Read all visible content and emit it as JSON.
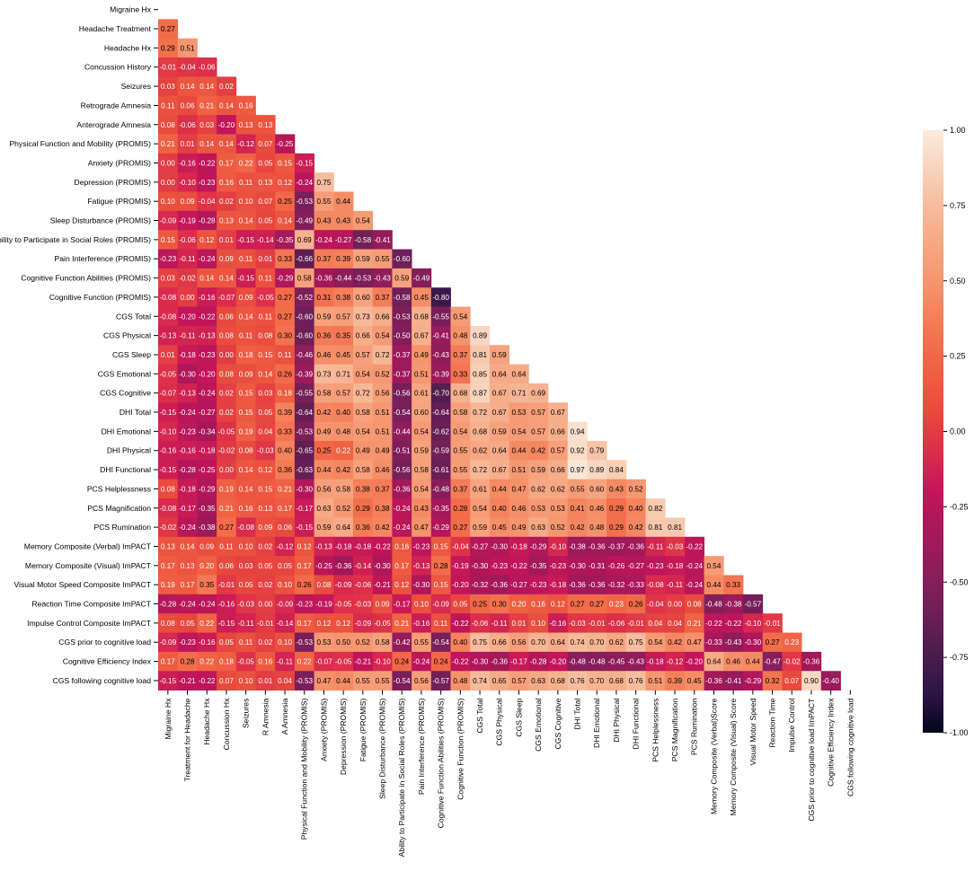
{
  "chart_data": {
    "type": "heatmap",
    "title": "",
    "xlabel": "",
    "ylabel": "",
    "mask": "upper-triangle-including-diagonal",
    "value_format": "2 decimals",
    "y_labels": [
      "Migraine Hx",
      "Headache Treatment",
      "Headache Hx",
      "Concussion History",
      "Seizures",
      "Retrograde Amnesia",
      "Anterograde Amnesia",
      "Physical Function and Mobility (PROMIS)",
      "Anxiety (PROMIS)",
      "Depression (PROMIS)",
      "Fatigue (PROMIS)",
      "Sleep Disturbance (PROMIS)",
      "Ability to Participate in Social Roles (PROMIS)",
      "Pain Interference (PROMIS)",
      "Cognitive Function Abilities (PROMIS)",
      "Cognitive Function (PROMIS)",
      "CGS Total",
      "CGS Physical",
      "CGS Sleep",
      "CGS Emotional",
      "CGS Cognitive",
      "DHI Total",
      "DHI Emotional",
      "DHI Physical",
      "DHI Functional",
      "PCS Helplessness",
      "PCS Magnification",
      "PCS Rumination",
      "Memory Composite (Verbal) ImPACT",
      "Memory Composite (Visual) ImPACT",
      "Visual Motor Speed Composite ImPACT",
      "Reaction Time Composite ImPACT",
      "Impulse Control Composite ImPACT",
      "CGS prior to cognitive load",
      "Cognitive Efficiency Index",
      "CGS following cognitive load"
    ],
    "x_labels": [
      "Migraine Hx",
      "Treatment for Headache",
      "Headache Hx",
      "Concussion Hx",
      "Seizures",
      "R Amnesia",
      "A Amnesia",
      "Physical Function and Mobility (PROMIS)",
      "Anxiety (PROMIS)",
      "Depression (PROMIS)",
      "Fatigue (PROMIS)",
      "Sleep Disturbance (PROMIS)",
      "Ability to Participate in Social Roles (PROMIS)",
      "Pain Interference (PROMIS)",
      "Cognitive Function Abilities (PROMIS)",
      "Cognitive Function (PROMIS)",
      "CGS Total",
      "CGS Physical",
      "CGS Sleep",
      "CGS Emotional",
      "CGS Cognitive",
      "DHI Total",
      "DHI Emotional",
      "DHI Physical",
      "DHI Functional",
      "PCS Helplessness",
      "PCS Magnification",
      "PCS Rumination",
      "Memory Composite (Verbal)Score",
      "Memory Composite (Visual) Score",
      "Visual Motor Speed",
      "Reaction Time",
      "Impulse Control",
      "CGS prior to cognitive load ImPACT",
      "Cognitive Efficiency Index",
      "CGS following cognitive load"
    ],
    "rows": [
      [],
      [
        0.27
      ],
      [
        0.29,
        0.51
      ],
      [
        -0.01,
        -0.04,
        -0.06
      ],
      [
        0.03,
        0.14,
        0.14,
        0.02
      ],
      [
        0.11,
        0.06,
        0.21,
        0.14,
        0.16
      ],
      [
        0.08,
        -0.06,
        0.03,
        -0.2,
        0.13,
        0.13
      ],
      [
        0.21,
        0.01,
        0.14,
        0.14,
        -0.12,
        0.07,
        -0.25
      ],
      [
        -0.0,
        -0.16,
        -0.22,
        0.17,
        0.22,
        0.05,
        0.15,
        -0.15
      ],
      [
        0.0,
        -0.1,
        -0.23,
        0.16,
        0.11,
        0.13,
        0.12,
        -0.24,
        0.75
      ],
      [
        0.1,
        0.09,
        -0.04,
        0.02,
        0.1,
        0.07,
        0.25,
        -0.53,
        0.55,
        0.44
      ],
      [
        -0.09,
        -0.19,
        -0.28,
        0.13,
        0.14,
        0.05,
        0.14,
        -0.49,
        0.43,
        0.43,
        0.54
      ],
      [
        0.15,
        -0.06,
        0.12,
        0.01,
        -0.15,
        -0.14,
        -0.35,
        0.69,
        -0.24,
        -0.27,
        -0.58,
        -0.41
      ],
      [
        -0.23,
        -0.11,
        -0.24,
        0.09,
        0.11,
        0.01,
        0.33,
        -0.66,
        0.37,
        0.39,
        0.59,
        0.55,
        -0.6
      ],
      [
        0.03,
        -0.02,
        0.14,
        0.14,
        -0.15,
        0.11,
        -0.29,
        0.58,
        -0.36,
        -0.44,
        -0.53,
        -0.43,
        0.59,
        -0.49
      ],
      [
        -0.08,
        -0.0,
        -0.16,
        -0.07,
        0.09,
        -0.05,
        0.27,
        -0.52,
        0.31,
        0.38,
        0.6,
        0.37,
        -0.58,
        0.45,
        -0.8
      ],
      [
        -0.08,
        -0.2,
        -0.22,
        0.06,
        0.14,
        0.11,
        0.27,
        -0.6,
        0.59,
        0.57,
        0.73,
        0.66,
        -0.53,
        0.68,
        -0.55,
        0.54
      ],
      [
        -0.13,
        -0.11,
        -0.13,
        0.08,
        0.11,
        0.08,
        0.3,
        -0.6,
        0.36,
        0.35,
        0.66,
        0.54,
        -0.5,
        0.67,
        -0.41,
        0.48,
        0.89
      ],
      [
        0.01,
        -0.18,
        -0.23,
        0.0,
        0.18,
        0.15,
        0.11,
        -0.46,
        0.46,
        0.45,
        0.57,
        0.72,
        -0.37,
        0.49,
        -0.43,
        0.37,
        0.81,
        0.59
      ],
      [
        -0.05,
        -0.3,
        -0.2,
        0.08,
        0.09,
        0.14,
        0.26,
        -0.39,
        0.73,
        0.71,
        0.54,
        0.52,
        -0.37,
        0.51,
        -0.39,
        0.33,
        0.85,
        0.64,
        0.64
      ],
      [
        -0.07,
        -0.13,
        -0.24,
        0.02,
        0.15,
        0.03,
        0.18,
        -0.55,
        0.58,
        0.57,
        0.72,
        0.56,
        -0.56,
        0.61,
        -0.7,
        0.68,
        0.87,
        0.67,
        0.71,
        0.69
      ],
      [
        -0.15,
        -0.24,
        -0.27,
        0.02,
        0.15,
        0.05,
        0.39,
        -0.64,
        0.42,
        0.4,
        0.58,
        0.51,
        -0.54,
        0.6,
        -0.64,
        0.58,
        0.72,
        0.67,
        0.53,
        0.57,
        0.67
      ],
      [
        -0.1,
        -0.23,
        -0.34,
        -0.05,
        0.19,
        0.04,
        0.33,
        -0.53,
        0.49,
        0.48,
        0.54,
        0.51,
        -0.44,
        0.54,
        -0.62,
        0.54,
        0.68,
        0.59,
        0.54,
        0.57,
        0.66,
        0.94
      ],
      [
        -0.16,
        -0.16,
        -0.18,
        -0.02,
        0.08,
        -0.03,
        0.4,
        -0.65,
        0.25,
        0.22,
        0.49,
        0.49,
        -0.51,
        0.59,
        -0.59,
        0.55,
        0.62,
        0.64,
        0.44,
        0.42,
        0.57,
        0.92,
        0.79
      ],
      [
        -0.15,
        -0.28,
        -0.25,
        -0.0,
        0.14,
        0.12,
        0.36,
        -0.63,
        0.44,
        0.42,
        0.58,
        0.46,
        -0.56,
        0.58,
        -0.61,
        0.55,
        0.72,
        0.67,
        0.51,
        0.59,
        0.66,
        0.97,
        0.89,
        0.84
      ],
      [
        0.08,
        -0.18,
        -0.29,
        0.19,
        0.14,
        0.15,
        0.21,
        -0.3,
        0.56,
        0.58,
        0.38,
        0.37,
        -0.36,
        0.54,
        -0.48,
        0.37,
        0.61,
        0.44,
        0.47,
        0.62,
        0.62,
        0.55,
        0.6,
        0.43,
        0.52
      ],
      [
        -0.08,
        -0.17,
        -0.35,
        0.21,
        0.16,
        0.13,
        0.17,
        -0.17,
        0.63,
        0.52,
        0.29,
        0.38,
        -0.24,
        0.43,
        -0.35,
        0.28,
        0.54,
        0.4,
        0.46,
        0.53,
        0.53,
        0.41,
        0.46,
        0.29,
        0.4,
        0.82
      ],
      [
        -0.02,
        -0.24,
        -0.38,
        0.27,
        -0.08,
        0.09,
        0.06,
        -0.15,
        0.59,
        0.64,
        0.36,
        0.42,
        -0.24,
        0.47,
        -0.29,
        0.27,
        0.59,
        0.45,
        0.49,
        0.63,
        0.52,
        0.42,
        0.48,
        0.29,
        0.42,
        0.81,
        0.81
      ],
      [
        0.13,
        0.14,
        0.09,
        0.11,
        0.1,
        0.02,
        -0.12,
        0.12,
        -0.13,
        -0.18,
        -0.18,
        -0.22,
        0.16,
        -0.23,
        0.15,
        -0.04,
        -0.27,
        -0.3,
        -0.18,
        -0.29,
        -0.1,
        -0.38,
        -0.36,
        -0.37,
        -0.36,
        -0.11,
        -0.03,
        -0.22
      ],
      [
        0.17,
        0.13,
        0.2,
        0.06,
        0.03,
        0.05,
        0.05,
        0.17,
        -0.25,
        -0.36,
        -0.14,
        -0.3,
        0.17,
        -0.13,
        0.28,
        -0.19,
        -0.3,
        -0.23,
        -0.22,
        -0.35,
        -0.23,
        -0.3,
        -0.31,
        -0.26,
        -0.27,
        -0.23,
        -0.18,
        -0.24,
        0.54
      ],
      [
        0.19,
        0.17,
        0.35,
        -0.01,
        0.05,
        0.02,
        0.1,
        0.26,
        0.08,
        -0.09,
        -0.06,
        -0.21,
        0.12,
        -0.3,
        0.15,
        -0.2,
        -0.32,
        -0.36,
        -0.27,
        -0.23,
        -0.18,
        -0.36,
        -0.36,
        -0.32,
        -0.33,
        -0.08,
        -0.11,
        -0.24,
        0.44,
        0.33
      ],
      [
        -0.28,
        -0.24,
        -0.24,
        -0.16,
        -0.03,
        -0.0,
        -0.09,
        -0.23,
        -0.19,
        -0.05,
        -0.03,
        0.09,
        -0.17,
        0.1,
        -0.09,
        0.05,
        0.25,
        0.3,
        0.2,
        0.16,
        0.12,
        0.27,
        0.27,
        0.23,
        0.26,
        -0.04,
        0.0,
        0.08,
        -0.48,
        -0.38,
        -0.57
      ],
      [
        0.08,
        0.05,
        0.22,
        -0.15,
        -0.11,
        -0.01,
        -0.14,
        0.17,
        0.12,
        0.12,
        -0.09,
        -0.05,
        0.21,
        -0.16,
        0.11,
        -0.22,
        -0.06,
        -0.11,
        0.01,
        0.1,
        -0.16,
        -0.03,
        -0.01,
        -0.06,
        -0.01,
        0.04,
        0.04,
        0.21,
        -0.22,
        -0.22,
        -0.1,
        -0.01
      ],
      [
        -0.09,
        -0.23,
        -0.16,
        0.05,
        0.11,
        0.02,
        0.1,
        -0.53,
        0.53,
        0.5,
        0.52,
        0.58,
        -0.42,
        0.55,
        -0.54,
        0.4,
        0.75,
        0.66,
        0.56,
        0.7,
        0.64,
        0.74,
        0.7,
        0.62,
        0.75,
        0.54,
        0.42,
        0.47,
        -0.33,
        -0.43,
        -0.3,
        0.27,
        0.23
      ],
      [
        0.17,
        0.28,
        0.22,
        0.18,
        -0.05,
        0.16,
        -0.11,
        0.22,
        -0.07,
        -0.05,
        -0.21,
        -0.1,
        0.24,
        -0.24,
        0.24,
        -0.22,
        -0.3,
        -0.36,
        -0.17,
        -0.28,
        -0.2,
        -0.48,
        -0.48,
        -0.45,
        -0.43,
        -0.18,
        -0.12,
        -0.2,
        0.64,
        0.46,
        0.44,
        -0.47,
        -0.02,
        -0.36
      ],
      [
        -0.15,
        -0.21,
        -0.22,
        0.07,
        0.1,
        0.01,
        0.04,
        -0.53,
        0.47,
        0.44,
        0.55,
        0.55,
        -0.54,
        0.56,
        -0.57,
        0.48,
        0.74,
        0.65,
        0.57,
        0.63,
        0.68,
        0.76,
        0.7,
        0.68,
        0.76,
        0.51,
        0.39,
        0.45,
        -0.36,
        -0.41,
        -0.29,
        0.32,
        0.07,
        0.9,
        -0.4
      ]
    ],
    "colorbar": {
      "range": [
        -1.0,
        1.0
      ],
      "ticks": [
        "1.00",
        "0.75",
        "0.50",
        "0.25",
        "0.00",
        "-0.25",
        "-0.50",
        "-0.75",
        "-1.00"
      ],
      "colormap": "rocket",
      "stops": [
        "#03051a",
        "#2f1547",
        "#4c1d4b",
        "#6e1f57",
        "#891e5b",
        "#a8185a",
        "#c3155a",
        "#dc2d4b",
        "#e84a3d",
        "#f06043",
        "#f37651",
        "#f5906a",
        "#f6a47f",
        "#f6b998",
        "#f8d3bc",
        "#faebdd"
      ]
    }
  }
}
